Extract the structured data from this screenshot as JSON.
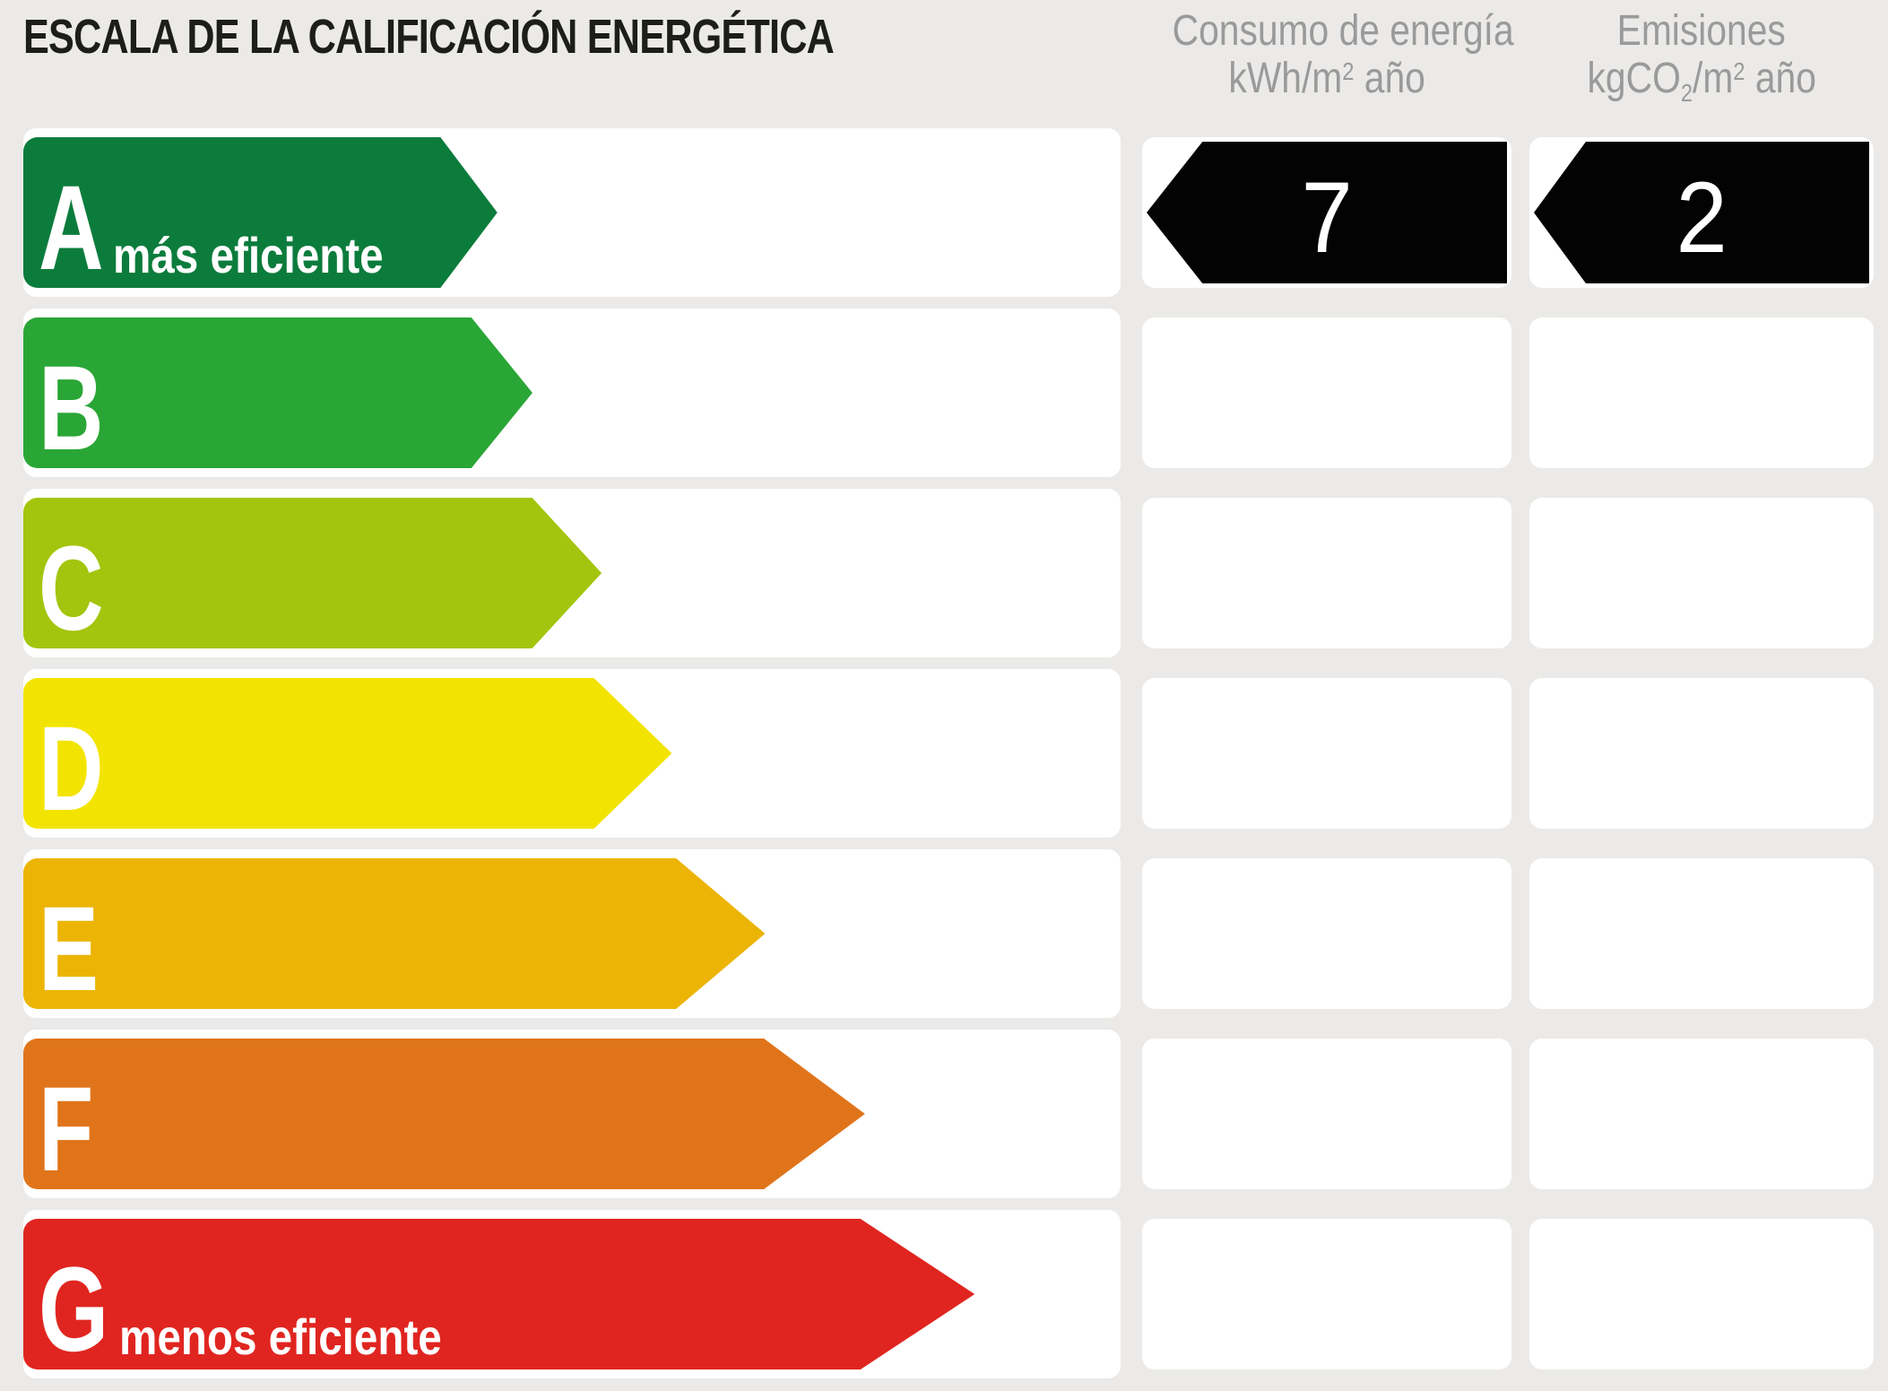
{
  "title": "ESCALA DE LA CALIFICACIÓN ENERGÉTICA",
  "columns": {
    "consumo": {
      "title": "Consumo de energía",
      "unit_pre": "kWh/m",
      "unit_sup": "2",
      "unit_post": " año"
    },
    "emisiones": {
      "title": "Emisiones",
      "unit_pre": "kgCO",
      "unit_sub": "2",
      "unit_mid": "/m",
      "unit_sup": "2",
      "unit_post": " año"
    }
  },
  "scale": {
    "rows": [
      {
        "grade": "A",
        "note": "más eficiente",
        "color": "#0c7c3c",
        "bar_pct": 43.2,
        "consumo": "7",
        "emisiones": "2"
      },
      {
        "grade": "B",
        "note": "",
        "color": "#2aa636",
        "bar_pct": 46.4,
        "consumo": "",
        "emisiones": ""
      },
      {
        "grade": "C",
        "note": "",
        "color": "#a4c50d",
        "bar_pct": 52.7,
        "consumo": "",
        "emisiones": ""
      },
      {
        "grade": "D",
        "note": "",
        "color": "#f2e400",
        "bar_pct": 59.1,
        "consumo": "",
        "emisiones": ""
      },
      {
        "grade": "E",
        "note": "",
        "color": "#ecb405",
        "bar_pct": 67.6,
        "consumo": "",
        "emisiones": ""
      },
      {
        "grade": "F",
        "note": "",
        "color": "#e0741a",
        "bar_pct": 76.7,
        "consumo": "",
        "emisiones": ""
      },
      {
        "grade": "G",
        "note": "menos eficiente",
        "color": "#e02520",
        "bar_pct": 86.7,
        "consumo": "",
        "emisiones": ""
      }
    ]
  },
  "badge_color": "#030303",
  "background_color": "#ebeae8",
  "chart_data": {
    "type": "bar",
    "orientation": "horizontal",
    "title": "ESCALA DE LA CALIFICACIÓN ENERGÉTICA",
    "categories": [
      "A",
      "B",
      "C",
      "D",
      "E",
      "F",
      "G"
    ],
    "category_annotations": {
      "A": "más eficiente",
      "G": "menos eficiente"
    },
    "bar_lengths_relative": [
      0.43,
      0.46,
      0.53,
      0.59,
      0.68,
      0.77,
      0.87
    ],
    "bar_colors": [
      "#0c7c3c",
      "#2aa636",
      "#a4c50d",
      "#f2e400",
      "#ecb405",
      "#e0741a",
      "#e02520"
    ],
    "series": [
      {
        "name": "Consumo de energía kWh/m² año",
        "values": [
          7,
          null,
          null,
          null,
          null,
          null,
          null
        ]
      },
      {
        "name": "Emisiones kgCO₂/m² año",
        "values": [
          2,
          null,
          null,
          null,
          null,
          null,
          null
        ]
      }
    ],
    "rating": {
      "grade": "A",
      "consumo_kwh_m2_ano": 7,
      "emisiones_kgco2_m2_ano": 2
    },
    "legend_position": "none",
    "grid": false
  }
}
